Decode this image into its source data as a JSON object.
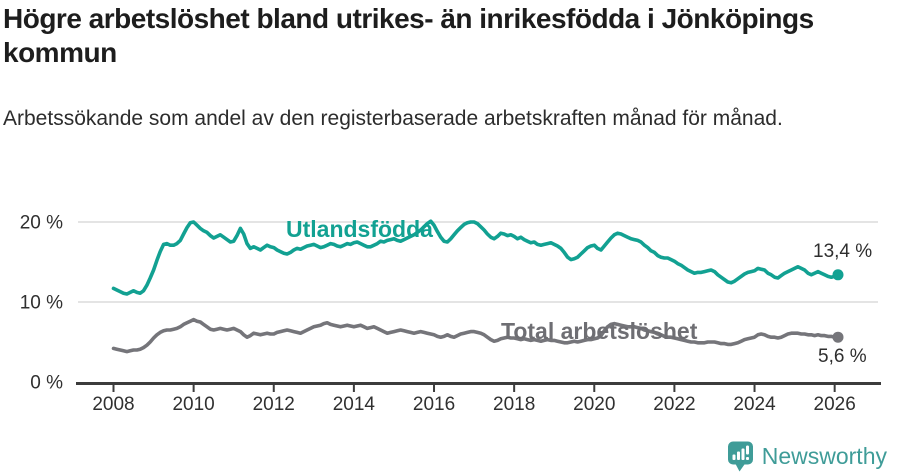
{
  "page": {
    "title": "Högre arbetslöshet bland utrikes- än inrikesfödda i Jönköpings kommun",
    "subtitle": "Arbetssökande som andel av den registerbaserade arbetskraften månad för månad."
  },
  "brand": {
    "name": "Newsworthy",
    "icon": "newsworthy-speech-bubble-bar-chart-icon"
  },
  "colors": {
    "accent_teal": "#12a192",
    "line_gray": "#75757a",
    "grid": "#dcdcdc",
    "axis": "#3c3c3c",
    "tick_text": "#303030",
    "title_text": "#1d1d1d",
    "value_text": "#2e2e2e",
    "brand_teal": "#3f9c98"
  },
  "chart_data": {
    "type": "line",
    "title": "Högre arbetslöshet bland utrikes- än inrikesfödda i Jönköpings kommun",
    "subtitle": "Arbetssökande som andel av den registerbaserade arbetskraften månad för månad.",
    "unit": "%",
    "frequency": "monthly",
    "x_axis": {
      "start": "2008-01",
      "end": "2026-02",
      "tick_years": [
        2008,
        2010,
        2012,
        2014,
        2016,
        2018,
        2020,
        2022,
        2024,
        2026
      ]
    },
    "y_axis": {
      "ticks": [
        {
          "value": 0,
          "label": "0 %"
        },
        {
          "value": 10,
          "label": "10 %"
        },
        {
          "value": 20,
          "label": "20 %"
        }
      ],
      "range": [
        0,
        21.5
      ]
    },
    "grid": "horizontal-only",
    "legend": "inline-labels-on-lines",
    "series": [
      {
        "name": "Utlandsfödda",
        "color": "#12a192",
        "end_value": 13.4,
        "end_value_label": "13,4 %",
        "values": [
          11.7,
          11.5,
          11.3,
          11.1,
          11.0,
          11.2,
          11.4,
          11.2,
          11.1,
          11.4,
          12.1,
          13.0,
          14.0,
          15.2,
          16.3,
          17.2,
          17.3,
          17.1,
          17.1,
          17.3,
          17.7,
          18.5,
          19.3,
          19.9,
          20.0,
          19.6,
          19.2,
          18.9,
          18.7,
          18.3,
          18.0,
          18.2,
          18.4,
          18.1,
          17.8,
          17.5,
          17.6,
          18.3,
          19.2,
          18.5,
          17.3,
          16.7,
          16.9,
          16.7,
          16.5,
          16.8,
          17.1,
          16.9,
          16.8,
          16.5,
          16.3,
          16.1,
          16.0,
          16.2,
          16.5,
          16.7,
          16.6,
          16.8,
          17.0,
          17.1,
          17.2,
          17.0,
          16.8,
          16.9,
          17.1,
          17.3,
          17.2,
          17.0,
          16.9,
          17.1,
          17.3,
          17.2,
          17.4,
          17.5,
          17.3,
          17.1,
          16.9,
          16.9,
          17.1,
          17.3,
          17.6,
          17.5,
          17.7,
          17.8,
          17.9,
          17.7,
          17.6,
          17.8,
          18.0,
          18.2,
          18.4,
          18.7,
          19.0,
          19.4,
          19.8,
          20.1,
          19.6,
          18.8,
          18.1,
          17.6,
          17.5,
          17.9,
          18.4,
          18.9,
          19.3,
          19.7,
          19.9,
          20.0,
          20.0,
          19.8,
          19.4,
          19.0,
          18.5,
          18.1,
          17.9,
          18.2,
          18.6,
          18.5,
          18.3,
          18.4,
          18.2,
          17.9,
          18.1,
          17.8,
          17.6,
          17.4,
          17.5,
          17.2,
          17.1,
          17.2,
          17.3,
          17.4,
          17.2,
          17.0,
          16.7,
          16.2,
          15.6,
          15.3,
          15.4,
          15.6,
          16.0,
          16.4,
          16.8,
          17.0,
          17.1,
          16.7,
          16.5,
          17.0,
          17.5,
          18.0,
          18.4,
          18.6,
          18.5,
          18.3,
          18.1,
          17.9,
          17.8,
          17.7,
          17.5,
          17.1,
          16.8,
          16.4,
          16.2,
          15.8,
          15.6,
          15.5,
          15.5,
          15.3,
          15.1,
          14.8,
          14.6,
          14.3,
          14.0,
          13.8,
          13.6,
          13.7,
          13.7,
          13.8,
          13.9,
          14.0,
          13.8,
          13.4,
          13.1,
          12.8,
          12.5,
          12.4,
          12.6,
          12.9,
          13.2,
          13.5,
          13.7,
          13.8,
          13.9,
          14.2,
          14.1,
          14.0,
          13.6,
          13.4,
          13.1,
          13.0,
          13.3,
          13.6,
          13.8,
          14.0,
          14.2,
          14.4,
          14.2,
          14.0,
          13.6,
          13.4,
          13.6,
          13.8,
          13.6,
          13.4,
          13.2,
          13.1,
          13.2,
          13.4
        ]
      },
      {
        "name": "Total arbetslöshet",
        "color": "#75757a",
        "end_value": 5.6,
        "end_value_label": "5,6 %",
        "values": [
          4.2,
          4.1,
          4.0,
          3.9,
          3.8,
          3.9,
          4.0,
          4.0,
          4.1,
          4.3,
          4.6,
          5.0,
          5.5,
          5.9,
          6.2,
          6.4,
          6.5,
          6.5,
          6.6,
          6.7,
          6.9,
          7.2,
          7.4,
          7.6,
          7.8,
          7.6,
          7.5,
          7.2,
          6.9,
          6.6,
          6.5,
          6.6,
          6.7,
          6.6,
          6.5,
          6.6,
          6.7,
          6.5,
          6.3,
          5.9,
          5.6,
          5.8,
          6.1,
          6.0,
          5.9,
          6.0,
          6.1,
          6.0,
          6.0,
          6.2,
          6.3,
          6.4,
          6.5,
          6.4,
          6.3,
          6.2,
          6.1,
          6.3,
          6.5,
          6.7,
          6.9,
          7.0,
          7.1,
          7.3,
          7.4,
          7.2,
          7.1,
          7.0,
          6.9,
          7.0,
          7.1,
          7.0,
          6.9,
          7.0,
          7.1,
          6.9,
          6.7,
          6.8,
          6.9,
          6.7,
          6.5,
          6.3,
          6.1,
          6.2,
          6.3,
          6.4,
          6.5,
          6.4,
          6.3,
          6.2,
          6.1,
          6.2,
          6.3,
          6.2,
          6.1,
          6.0,
          5.9,
          5.7,
          5.6,
          5.7,
          5.9,
          5.7,
          5.6,
          5.8,
          6.0,
          6.1,
          6.2,
          6.3,
          6.3,
          6.2,
          6.1,
          5.9,
          5.6,
          5.3,
          5.1,
          5.2,
          5.4,
          5.5,
          5.6,
          5.5,
          5.5,
          5.4,
          5.3,
          5.4,
          5.3,
          5.2,
          5.3,
          5.2,
          5.1,
          5.2,
          5.3,
          5.2,
          5.2,
          5.1,
          5.0,
          4.9,
          4.9,
          5.0,
          5.1,
          5.0,
          5.1,
          5.2,
          5.3,
          5.3,
          5.4,
          5.5,
          5.8,
          6.4,
          6.9,
          7.2,
          7.3,
          7.2,
          7.1,
          7.0,
          6.9,
          6.9,
          6.9,
          6.8,
          6.7,
          6.5,
          6.4,
          6.3,
          6.2,
          6.0,
          5.9,
          5.7,
          5.6,
          5.6,
          5.5,
          5.4,
          5.3,
          5.2,
          5.1,
          5.0,
          5.0,
          4.9,
          4.9,
          4.9,
          5.0,
          5.0,
          5.0,
          4.9,
          4.8,
          4.8,
          4.7,
          4.7,
          4.8,
          4.9,
          5.1,
          5.3,
          5.4,
          5.5,
          5.6,
          5.9,
          6.0,
          5.9,
          5.7,
          5.6,
          5.6,
          5.5,
          5.6,
          5.8,
          6.0,
          6.1,
          6.1,
          6.1,
          6.0,
          6.0,
          5.9,
          5.9,
          5.8,
          5.9,
          5.8,
          5.8,
          5.7,
          5.7,
          5.6,
          5.6
        ]
      }
    ]
  }
}
